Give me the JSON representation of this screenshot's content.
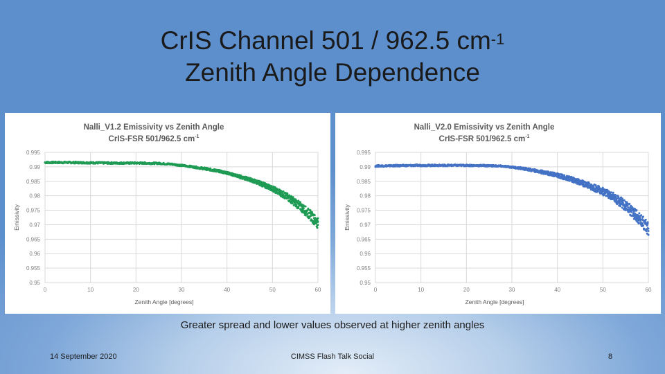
{
  "slide": {
    "title_line1": "CrIS Channel 501 / 962.5 cm",
    "title_sup": "-1",
    "title_line2": "Zenith Angle Dependence",
    "caption": "Greater spread and lower values observed at higher zenith angles"
  },
  "footer": {
    "date": "14 September 2020",
    "event": "CIMSS Flash Talk Social",
    "page": "8"
  },
  "chart_data": [
    {
      "type": "scatter",
      "title": "Nalli_V1.2 Emissivity vs Zenith Angle",
      "subtitle": "CrIS-FSR 501/962.5 cm",
      "subtitle_sup": "-1",
      "xlabel": "Zenith Angle [degrees]",
      "ylabel": "Emissivity",
      "xlim": [
        0,
        60
      ],
      "ylim": [
        0.95,
        0.995
      ],
      "xticks": [
        "0",
        "10",
        "20",
        "30",
        "40",
        "50",
        "60"
      ],
      "yticks": [
        "0.95",
        "0.955",
        "0.96",
        "0.965",
        "0.97",
        "0.975",
        "0.98",
        "0.985",
        "0.99",
        "0.995"
      ],
      "grid": true,
      "color": "#1f9b54",
      "x": [
        0,
        5,
        10,
        15,
        20,
        25,
        28,
        30,
        32,
        35,
        38,
        40,
        42,
        45,
        47,
        50,
        52,
        54,
        56,
        58,
        59,
        60
      ],
      "y_center": [
        0.9915,
        0.9915,
        0.9914,
        0.9913,
        0.9913,
        0.9912,
        0.9909,
        0.9905,
        0.9901,
        0.9894,
        0.9886,
        0.9879,
        0.987,
        0.9856,
        0.9845,
        0.9825,
        0.9808,
        0.9789,
        0.9765,
        0.9738,
        0.9722,
        0.9705
      ],
      "y_spread": [
        0.0003,
        0.0003,
        0.0003,
        0.0003,
        0.0003,
        0.0003,
        0.0003,
        0.0003,
        0.0003,
        0.0004,
        0.0004,
        0.0004,
        0.0005,
        0.0006,
        0.0007,
        0.0009,
        0.0011,
        0.0013,
        0.0015,
        0.0017,
        0.0018,
        0.0019
      ]
    },
    {
      "type": "scatter",
      "title": "Nalli_V2.0 Emissivity vs Zenith Angle",
      "subtitle": "CrIS-FSR 501/962.5 cm",
      "subtitle_sup": "-1",
      "xlabel": "Zenith Angle [degrees]",
      "ylabel": "Emissivity",
      "xlim": [
        0,
        60
      ],
      "ylim": [
        0.95,
        0.995
      ],
      "xticks": [
        "0",
        "10",
        "20",
        "30",
        "40",
        "50",
        "60"
      ],
      "yticks": [
        "0.95",
        "0.955",
        "0.96",
        "0.965",
        "0.97",
        "0.975",
        "0.98",
        "0.985",
        "0.99",
        "0.995"
      ],
      "grid": true,
      "color": "#4472c4",
      "x": [
        0,
        5,
        10,
        15,
        20,
        25,
        28,
        30,
        32,
        35,
        38,
        40,
        42,
        45,
        47,
        50,
        52,
        54,
        56,
        58,
        59,
        60
      ],
      "y_center": [
        0.9903,
        0.9904,
        0.9905,
        0.9905,
        0.9905,
        0.9904,
        0.9902,
        0.9899,
        0.9895,
        0.9887,
        0.9878,
        0.9871,
        0.9862,
        0.9847,
        0.9835,
        0.9815,
        0.9798,
        0.9777,
        0.9752,
        0.9722,
        0.9705,
        0.9685
      ],
      "y_spread": [
        0.0003,
        0.0003,
        0.0003,
        0.0003,
        0.0003,
        0.0003,
        0.0003,
        0.0003,
        0.0004,
        0.0005,
        0.0006,
        0.0007,
        0.0008,
        0.001,
        0.0011,
        0.0013,
        0.0015,
        0.0017,
        0.0019,
        0.0021,
        0.0022,
        0.0023
      ]
    }
  ]
}
